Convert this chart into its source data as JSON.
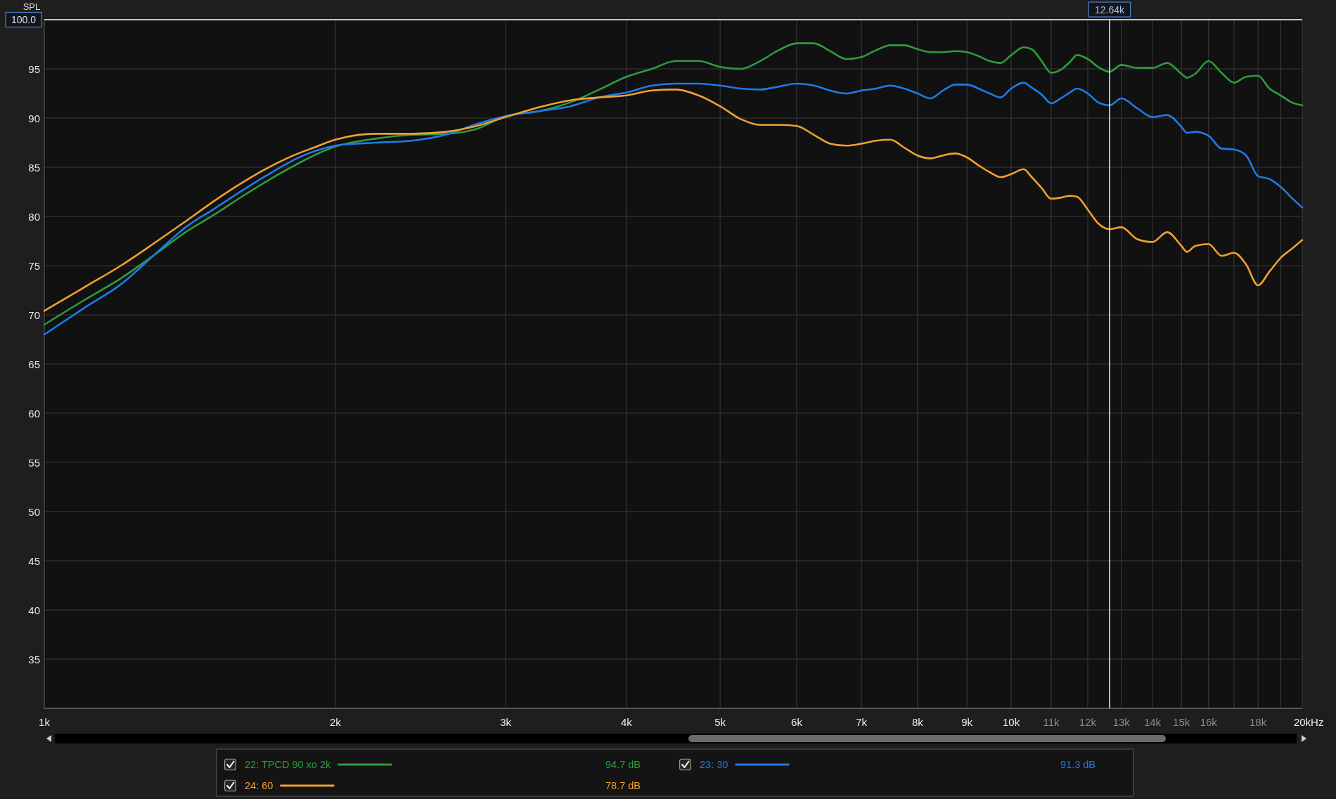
{
  "chart_data": {
    "type": "line",
    "ylabel": "SPL",
    "xlabel": "Hz",
    "x": [
      1000,
      1100,
      1200,
      1300,
      1400,
      1500,
      1600,
      1700,
      1800,
      1900,
      2000,
      2200,
      2400,
      2600,
      2800,
      3000,
      3250,
      3500,
      3750,
      4000,
      4250,
      4500,
      4750,
      5000,
      5250,
      5500,
      5750,
      6000,
      6250,
      6500,
      6750,
      7000,
      7250,
      7500,
      7750,
      8000,
      8250,
      8500,
      8750,
      9000,
      9250,
      9500,
      9750,
      10000,
      10300,
      10500,
      10750,
      11000,
      11250,
      11500,
      11700,
      12000,
      12300,
      12640,
      13000,
      13500,
      14000,
      14500,
      15000,
      15200,
      15500,
      16000,
      16500,
      17000,
      17500,
      18000,
      18500,
      19000,
      19500,
      20000
    ],
    "series": [
      {
        "name": "22: TPCD 90 xo 2k",
        "color": "#2e9b3e",
        "values": [
          69.0,
          71.5,
          73.7,
          76.1,
          78.4,
          80.2,
          82.0,
          83.6,
          85.0,
          86.2,
          87.1,
          87.9,
          88.3,
          88.4,
          88.9,
          90.2,
          90.7,
          91.6,
          92.9,
          94.2,
          95.0,
          95.8,
          95.8,
          95.2,
          95.0,
          95.8,
          96.9,
          97.6,
          97.6,
          96.8,
          96.0,
          96.2,
          96.9,
          97.4,
          97.4,
          97.0,
          96.7,
          96.7,
          96.8,
          96.7,
          96.3,
          95.8,
          95.6,
          96.4,
          97.2,
          97.0,
          95.8,
          94.6,
          94.9,
          95.7,
          96.4,
          96.0,
          95.2,
          94.7,
          95.4,
          95.1,
          95.1,
          95.6,
          94.5,
          94.1,
          94.5,
          95.8,
          94.6,
          93.6,
          94.2,
          94.3,
          93.0,
          92.3,
          91.6,
          91.3
        ]
      },
      {
        "name": "23: 30",
        "color": "#1f7ae6",
        "values": [
          68.0,
          70.7,
          73.1,
          76.1,
          78.9,
          80.8,
          82.6,
          84.2,
          85.6,
          86.6,
          87.2,
          87.5,
          87.7,
          88.3,
          89.4,
          90.2,
          90.7,
          91.2,
          92.1,
          92.6,
          93.3,
          93.5,
          93.5,
          93.3,
          93.0,
          92.9,
          93.2,
          93.5,
          93.3,
          92.8,
          92.5,
          92.8,
          93.0,
          93.3,
          93.0,
          92.5,
          92.0,
          92.8,
          93.4,
          93.4,
          93.0,
          92.5,
          92.1,
          93.0,
          93.6,
          93.1,
          92.4,
          91.5,
          92.0,
          92.6,
          93.0,
          92.5,
          91.6,
          91.3,
          92.0,
          91.0,
          90.1,
          90.3,
          89.1,
          88.5,
          88.6,
          88.2,
          86.9,
          86.8,
          86.2,
          84.1,
          83.8,
          83.0,
          81.9,
          80.9
        ]
      },
      {
        "name": "24: 60",
        "color": "#f0a030",
        "values": [
          70.4,
          72.8,
          75.0,
          77.3,
          79.5,
          81.6,
          83.4,
          84.9,
          86.1,
          87.0,
          87.8,
          88.4,
          88.4,
          88.6,
          89.2,
          90.1,
          91.1,
          91.8,
          92.1,
          92.3,
          92.8,
          92.9,
          92.3,
          91.2,
          89.9,
          89.3,
          89.3,
          89.2,
          88.3,
          87.4,
          87.2,
          87.4,
          87.7,
          87.8,
          87.0,
          86.2,
          85.9,
          86.2,
          86.4,
          86.0,
          85.2,
          84.5,
          84.0,
          84.3,
          84.8,
          84.0,
          82.9,
          81.8,
          81.9,
          82.1,
          82.0,
          80.7,
          79.3,
          78.7,
          78.9,
          77.7,
          77.4,
          78.4,
          77.0,
          76.4,
          77.0,
          77.2,
          76.0,
          76.3,
          75.1,
          73.0,
          74.4,
          75.8,
          76.7,
          77.6
        ]
      }
    ],
    "xlim": [
      1000,
      20000
    ],
    "ylim": [
      30,
      100
    ],
    "xticks": [
      {
        "value": 1000,
        "label": "1k"
      },
      {
        "value": 2000,
        "label": "2k"
      },
      {
        "value": 3000,
        "label": "3k"
      },
      {
        "value": 4000,
        "label": "4k"
      },
      {
        "value": 5000,
        "label": "5k"
      },
      {
        "value": 6000,
        "label": "6k"
      },
      {
        "value": 7000,
        "label": "7k"
      },
      {
        "value": 8000,
        "label": "8k"
      },
      {
        "value": 9000,
        "label": "9k"
      },
      {
        "value": 10000,
        "label": "10k"
      },
      {
        "value": 11000,
        "label": "11k"
      },
      {
        "value": 12000,
        "label": "12k"
      },
      {
        "value": 13000,
        "label": "13k"
      },
      {
        "value": 14000,
        "label": "14k"
      },
      {
        "value": 15000,
        "label": "15k"
      },
      {
        "value": 16000,
        "label": "16k"
      },
      {
        "value": 17000,
        "label": null
      },
      {
        "value": 18000,
        "label": "18k"
      },
      {
        "value": 19000,
        "label": null
      },
      {
        "value": 20000,
        "label": "20k"
      }
    ],
    "yticks": [
      35,
      40,
      45,
      50,
      55,
      60,
      65,
      70,
      75,
      80,
      85,
      90,
      95
    ],
    "log": "x",
    "grid": true,
    "legend": "bottom",
    "ref_lines": [
      {
        "axis": "x",
        "value": 12640,
        "label": "12.64k",
        "color": "#ffffff"
      },
      {
        "axis": "y",
        "value": 100,
        "label": "100.0",
        "color": "#ffffff"
      }
    ],
    "annotations": [
      "94.7 dB",
      "91.3 dB",
      "78.7 dB"
    ]
  }
}
